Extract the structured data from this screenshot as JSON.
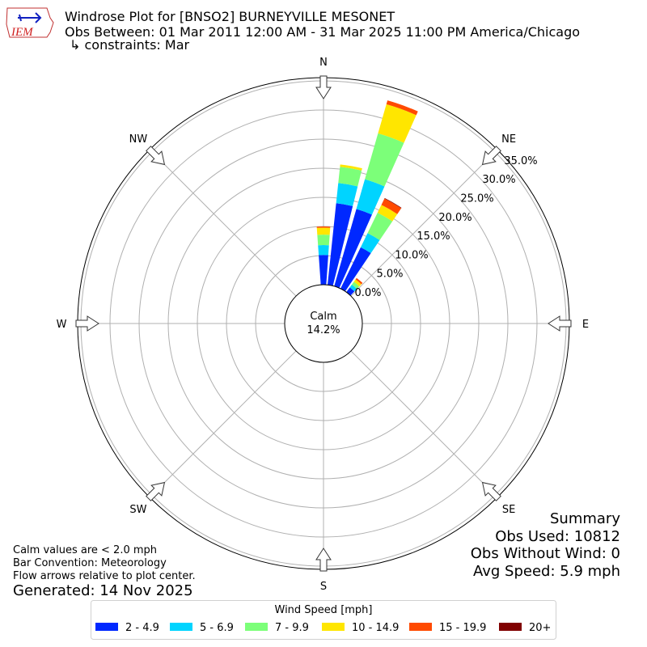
{
  "header": {
    "logo_text": "IEM",
    "title_line1": "Windrose Plot for [BNSO2] BURNEYVILLE MESONET",
    "title_line2": "Obs Between: 01 Mar 2011 12:00 AM - 31 Mar 2025 11:00 PM America/Chicago",
    "title_line3": "↳ constraints: Mar"
  },
  "notes": {
    "calm_note": "Calm values are < 2.0 mph",
    "bar_convention": "Bar Convention: Meteorology",
    "flow_note": "Flow arrows relative to plot center.",
    "generated": "Generated: 14 Nov 2025"
  },
  "summary": {
    "title": "Summary",
    "obs_used": "Obs Used: 10812",
    "obs_without_wind": "Obs Without Wind: 0",
    "avg_speed": "Avg Speed: 5.9 mph"
  },
  "chart_data": {
    "type": "windrose",
    "calm_label": "Calm",
    "calm_value": "14.2%",
    "radial_ticks": [
      "0.0%",
      "5.0%",
      "10.0%",
      "15.0%",
      "20.0%",
      "25.0%",
      "30.0%",
      "35.0%"
    ],
    "radial_max": 35,
    "compass_labels": [
      "N",
      "NE",
      "E",
      "SE",
      "S",
      "SW",
      "W",
      "NW"
    ],
    "legend_title": "Wind Speed [mph]",
    "bins": [
      {
        "label": "2 - 4.9",
        "color": "#0028ff"
      },
      {
        "label": "5 - 6.9",
        "color": "#00d4ff"
      },
      {
        "label": "7 - 9.9",
        "color": "#7cff79"
      },
      {
        "label": "10 - 14.9",
        "color": "#ffe600"
      },
      {
        "label": "15 - 19.9",
        "color": "#ff4a00"
      },
      {
        "label": "20+",
        "color": "#800000"
      }
    ],
    "directions_deg": [
      0,
      10,
      20,
      30,
      40
    ],
    "values_percent": [
      [
        5.1,
        1.7,
        1.8,
        1.2,
        0.2,
        0.0
      ],
      [
        14.1,
        3.5,
        2.8,
        0.4,
        0.0,
        0.0
      ],
      [
        13.8,
        5.3,
        8.2,
        5.2,
        0.7,
        0.0
      ],
      [
        7.9,
        2.7,
        3.9,
        1.5,
        1.2,
        0.1
      ],
      [
        1.0,
        0.6,
        0.6,
        0.5,
        0.3,
        0.0
      ]
    ]
  }
}
